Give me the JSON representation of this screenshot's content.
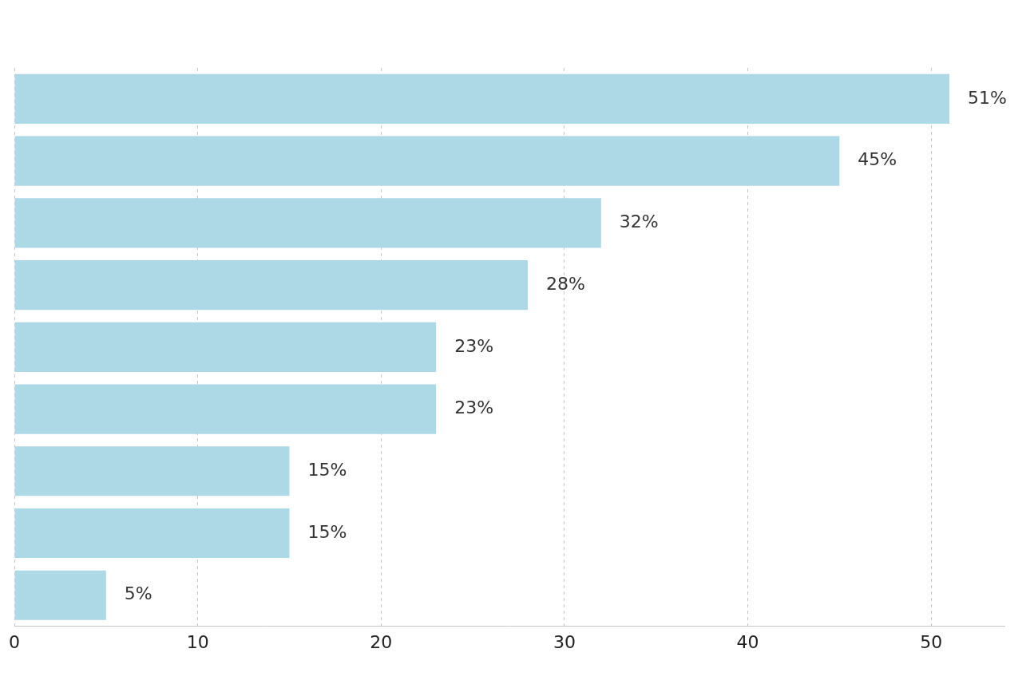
{
  "chart_data": {
    "type": "bar",
    "orientation": "horizontal",
    "categories": [
      null,
      null,
      null,
      null,
      null,
      null,
      null,
      null,
      null
    ],
    "values": [
      51,
      45,
      32,
      28,
      23,
      23,
      15,
      15,
      5
    ],
    "value_labels": [
      "51%",
      "45%",
      "32%",
      "28%",
      "23%",
      "23%",
      "15%",
      "15%",
      "5%"
    ],
    "color": "#add8e6",
    "xlim": [
      0,
      54
    ],
    "xticks": [
      0,
      10,
      20,
      30,
      40,
      50
    ],
    "grid": true,
    "data_labels": true,
    "tick_labels": "x"
  }
}
